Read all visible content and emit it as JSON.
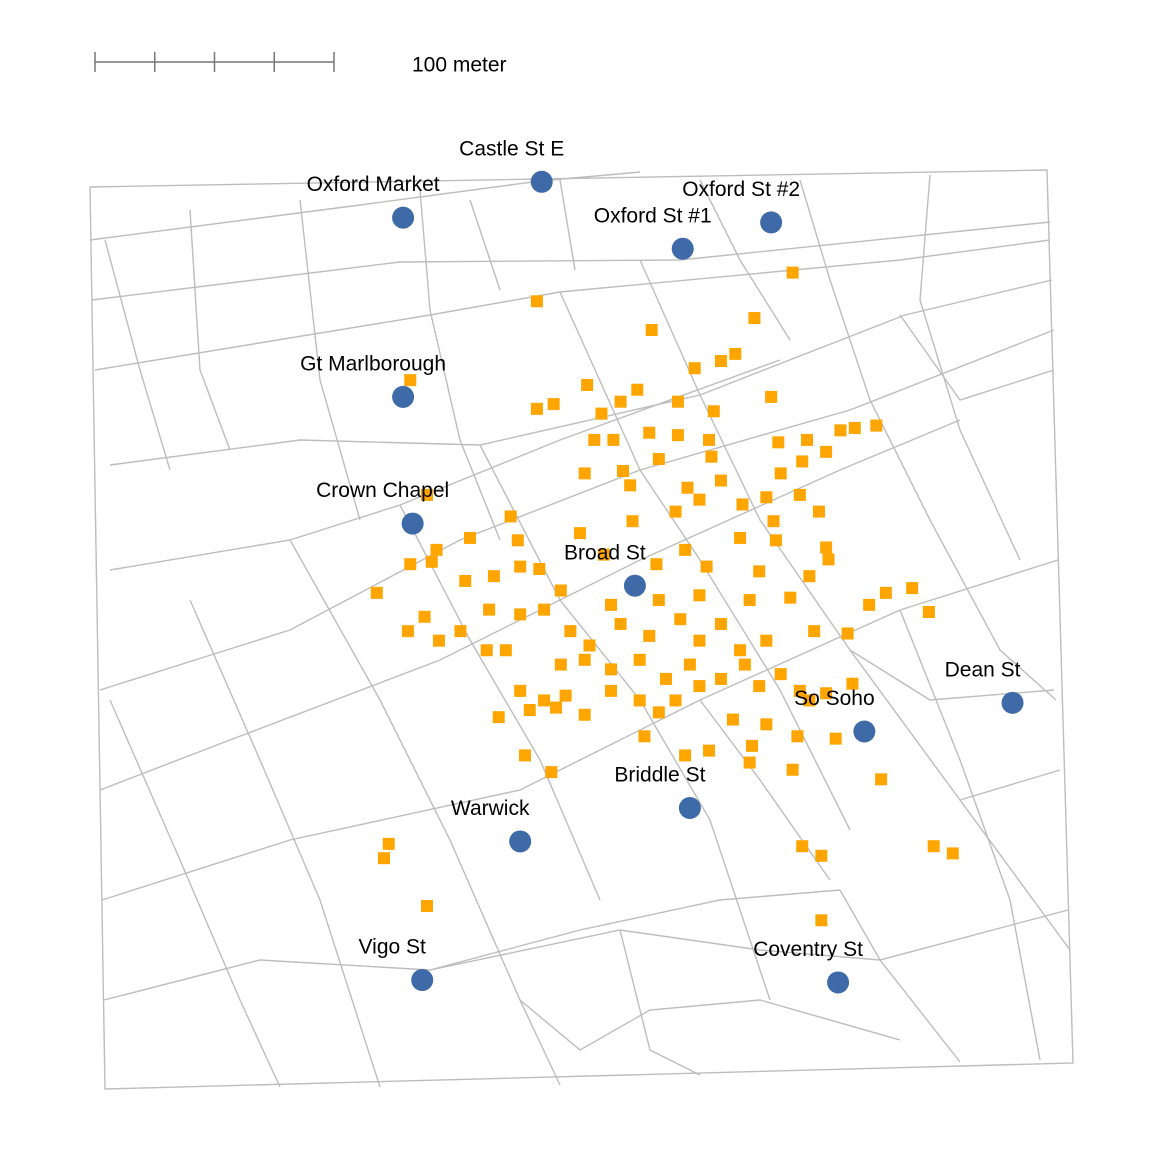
{
  "scale_bar": {
    "ticks": [
      0,
      25,
      50,
      75,
      100
    ],
    "label": "100 meter"
  },
  "pumps": [
    {
      "name": "Castle St E",
      "x": 189,
      "y": 380
    },
    {
      "name": "Oxford Market",
      "x": 131,
      "y": 365
    },
    {
      "name": "Oxford St #1",
      "x": 248,
      "y": 352
    },
    {
      "name": "Oxford St #2",
      "x": 285,
      "y": 363
    },
    {
      "name": "Gt Marlborough",
      "x": 131,
      "y": 290
    },
    {
      "name": "Crown Chapel",
      "x": 135,
      "y": 237
    },
    {
      "name": "Broad St",
      "x": 228,
      "y": 211
    },
    {
      "name": "Dean St",
      "x": 386,
      "y": 162
    },
    {
      "name": "So Soho",
      "x": 324,
      "y": 150
    },
    {
      "name": "Briddle St",
      "x": 251,
      "y": 118
    },
    {
      "name": "Warwick",
      "x": 180,
      "y": 104
    },
    {
      "name": "Vigo St",
      "x": 139,
      "y": 46
    },
    {
      "name": "Coventry St",
      "x": 313,
      "y": 45
    }
  ],
  "deaths": [
    [
      294,
      342
    ],
    [
      187,
      330
    ],
    [
      235,
      318
    ],
    [
      278,
      323
    ],
    [
      270,
      308
    ],
    [
      264,
      305
    ],
    [
      253,
      302
    ],
    [
      208,
      295
    ],
    [
      229,
      293
    ],
    [
      222,
      288
    ],
    [
      246,
      288
    ],
    [
      187,
      285
    ],
    [
      194,
      287
    ],
    [
      214,
      283
    ],
    [
      261,
      284
    ],
    [
      285,
      290
    ],
    [
      211,
      272
    ],
    [
      219,
      272
    ],
    [
      234,
      275
    ],
    [
      246,
      274
    ],
    [
      259,
      272
    ],
    [
      288,
      271
    ],
    [
      300,
      272
    ],
    [
      314,
      276
    ],
    [
      320,
      277
    ],
    [
      329,
      278
    ],
    [
      308,
      267
    ],
    [
      207,
      258
    ],
    [
      223,
      259
    ],
    [
      238,
      264
    ],
    [
      260,
      265
    ],
    [
      289,
      258
    ],
    [
      298,
      263
    ],
    [
      226,
      253
    ],
    [
      250,
      252
    ],
    [
      264,
      255
    ],
    [
      297,
      249
    ],
    [
      141,
      249
    ],
    [
      176,
      240
    ],
    [
      227,
      238
    ],
    [
      245,
      242
    ],
    [
      255,
      247
    ],
    [
      273,
      245
    ],
    [
      283,
      248
    ],
    [
      286,
      238
    ],
    [
      305,
      242
    ],
    [
      205,
      233
    ],
    [
      179,
      230
    ],
    [
      159,
      231
    ],
    [
      145,
      226
    ],
    [
      134,
      220
    ],
    [
      249,
      226
    ],
    [
      272,
      231
    ],
    [
      287,
      230
    ],
    [
      308,
      227
    ],
    [
      215,
      224
    ],
    [
      237,
      220
    ],
    [
      258,
      219
    ],
    [
      280,
      217
    ],
    [
      301,
      215
    ],
    [
      309,
      222
    ],
    [
      120,
      208
    ],
    [
      143,
      221
    ],
    [
      157,
      213
    ],
    [
      169,
      215
    ],
    [
      180,
      219
    ],
    [
      188,
      218
    ],
    [
      197,
      209
    ],
    [
      218,
      203
    ],
    [
      238,
      205
    ],
    [
      255,
      207
    ],
    [
      276,
      205
    ],
    [
      293,
      206
    ],
    [
      326,
      203
    ],
    [
      333,
      208
    ],
    [
      344,
      210
    ],
    [
      351,
      200
    ],
    [
      133,
      192
    ],
    [
      140,
      198
    ],
    [
      146,
      188
    ],
    [
      155,
      192
    ],
    [
      167,
      201
    ],
    [
      174,
      184
    ],
    [
      180,
      199
    ],
    [
      190,
      201
    ],
    [
      201,
      192
    ],
    [
      209,
      186
    ],
    [
      222,
      195
    ],
    [
      234,
      190
    ],
    [
      247,
      197
    ],
    [
      255,
      188
    ],
    [
      264,
      195
    ],
    [
      272,
      184
    ],
    [
      283,
      188
    ],
    [
      303,
      192
    ],
    [
      317,
      191
    ],
    [
      166,
      184
    ],
    [
      197,
      178
    ],
    [
      207,
      180
    ],
    [
      218,
      176
    ],
    [
      230,
      180
    ],
    [
      241,
      172
    ],
    [
      251,
      178
    ],
    [
      264,
      172
    ],
    [
      274,
      178
    ],
    [
      280,
      169
    ],
    [
      289,
      174
    ],
    [
      297,
      167
    ],
    [
      308,
      166
    ],
    [
      319,
      170
    ],
    [
      180,
      167
    ],
    [
      190,
      163
    ],
    [
      199,
      165
    ],
    [
      207,
      157
    ],
    [
      218,
      167
    ],
    [
      230,
      163
    ],
    [
      238,
      158
    ],
    [
      245,
      163
    ],
    [
      255,
      169
    ],
    [
      171,
      156
    ],
    [
      184,
      159
    ],
    [
      195,
      160
    ],
    [
      232,
      148
    ],
    [
      249,
      140
    ],
    [
      259,
      142
    ],
    [
      269,
      155
    ],
    [
      283,
      153
    ],
    [
      277,
      144
    ],
    [
      296,
      148
    ],
    [
      312,
      147
    ],
    [
      301,
      163
    ],
    [
      182,
      140
    ],
    [
      193,
      133
    ],
    [
      276,
      137
    ],
    [
      294,
      134
    ],
    [
      331,
      130
    ],
    [
      125,
      103
    ],
    [
      123,
      97
    ],
    [
      298,
      102
    ],
    [
      306,
      98
    ],
    [
      353,
      102
    ],
    [
      361,
      99
    ],
    [
      141,
      77
    ],
    [
      306,
      71
    ],
    [
      134,
      297
    ]
  ]
}
